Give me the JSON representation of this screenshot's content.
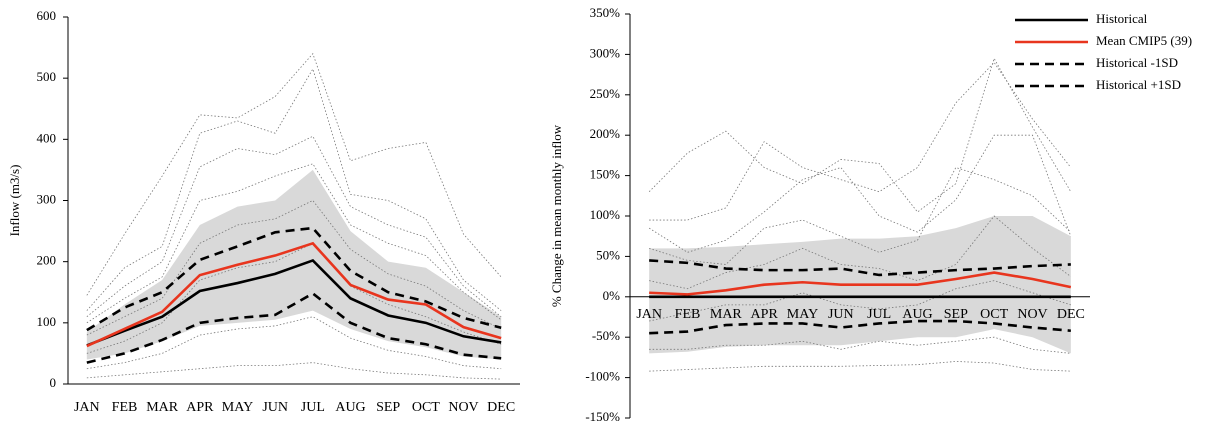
{
  "chart_data": [
    {
      "type": "line",
      "y_label": "Inflow (m3/s)",
      "categories": [
        "JAN",
        "FEB",
        "MAR",
        "APR",
        "MAY",
        "JUN",
        "JUL",
        "AUG",
        "SEP",
        "OCT",
        "NOV",
        "DEC"
      ],
      "ylim": [
        0,
        600
      ],
      "yticks": [
        0,
        100,
        200,
        300,
        400,
        500,
        600
      ],
      "x_axis_position": "bottom",
      "band": {
        "color": "#d9d9d9",
        "lower": [
          40,
          50,
          70,
          95,
          100,
          105,
          120,
          90,
          70,
          60,
          45,
          40
        ],
        "upper": [
          85,
          130,
          170,
          260,
          290,
          300,
          350,
          250,
          200,
          190,
          150,
          110
        ]
      },
      "series": [
        {
          "color": "#777777",
          "style": "dotted",
          "values": [
            145,
            245,
            340,
            440,
            435,
            470,
            540,
            365,
            385,
            395,
            245,
            175
          ]
        },
        {
          "color": "#777777",
          "style": "dotted",
          "values": [
            120,
            190,
            225,
            410,
            430,
            410,
            515,
            310,
            300,
            270,
            170,
            120
          ]
        },
        {
          "color": "#777777",
          "style": "dotted",
          "values": [
            110,
            160,
            200,
            355,
            385,
            375,
            405,
            290,
            260,
            240,
            160,
            110
          ]
        },
        {
          "color": "#777777",
          "style": "dotted",
          "values": [
            100,
            140,
            175,
            300,
            315,
            340,
            360,
            260,
            230,
            210,
            150,
            105
          ]
        },
        {
          "color": "#777777",
          "style": "dotted",
          "values": [
            80,
            110,
            140,
            230,
            260,
            270,
            300,
            220,
            180,
            160,
            120,
            90
          ]
        },
        {
          "color": "#777777",
          "style": "dotted",
          "values": [
            50,
            70,
            100,
            170,
            190,
            200,
            230,
            160,
            130,
            110,
            85,
            65
          ]
        },
        {
          "color": "#777777",
          "style": "dotted",
          "values": [
            25,
            35,
            50,
            80,
            90,
            95,
            110,
            75,
            55,
            45,
            30,
            25
          ]
        },
        {
          "color": "#777777",
          "style": "dotted",
          "values": [
            10,
            15,
            20,
            25,
            30,
            30,
            35,
            25,
            18,
            15,
            10,
            8
          ]
        },
        {
          "color": "#000000",
          "style": "solid",
          "values": [
            63,
            87,
            110,
            152,
            165,
            180,
            202,
            140,
            112,
            100,
            78,
            68
          ]
        },
        {
          "color": "#e8351e",
          "style": "solid",
          "values": [
            62,
            90,
            118,
            178,
            195,
            210,
            230,
            162,
            138,
            130,
            93,
            75
          ]
        },
        {
          "color": "#000000",
          "style": "dashed",
          "values": [
            35,
            50,
            72,
            100,
            108,
            113,
            148,
            100,
            75,
            65,
            48,
            42
          ]
        },
        {
          "color": "#000000",
          "style": "dashed",
          "values": [
            88,
            125,
            150,
            203,
            225,
            248,
            255,
            185,
            150,
            135,
            108,
            92
          ]
        }
      ]
    },
    {
      "type": "line",
      "y_label": "% Change in mean monthly inflow",
      "categories": [
        "JAN",
        "FEB",
        "MAR",
        "APR",
        "MAY",
        "JUN",
        "JUL",
        "AUG",
        "SEP",
        "OCT",
        "NOV",
        "DEC"
      ],
      "ylim": [
        -150,
        350
      ],
      "yticks": [
        {
          "value": -150,
          "label": "-150%"
        },
        {
          "value": -100,
          "label": "-100%"
        },
        {
          "value": -50,
          "label": "-50%"
        },
        {
          "value": 0,
          "label": "0%"
        },
        {
          "value": 50,
          "label": "50%"
        },
        {
          "value": 100,
          "label": "100%"
        },
        {
          "value": 150,
          "label": "150%"
        },
        {
          "value": 200,
          "label": "200%"
        },
        {
          "value": 250,
          "label": "250%"
        },
        {
          "value": 300,
          "label": "300%"
        },
        {
          "value": 350,
          "label": "350%"
        }
      ],
      "x_axis_position": "zero",
      "legend": "top-right",
      "band": {
        "color": "#d9d9d9",
        "lower": [
          -70,
          -68,
          -62,
          -60,
          -60,
          -60,
          -55,
          -50,
          -50,
          -40,
          -50,
          -70
        ],
        "upper": [
          60,
          60,
          62,
          65,
          68,
          72,
          72,
          75,
          85,
          100,
          100,
          75
        ]
      },
      "series": [
        {
          "color": "#777777",
          "style": "dotted",
          "values": [
            130,
            178,
            205,
            160,
            140,
            170,
            165,
            105,
            140,
            295,
            210,
            130
          ]
        },
        {
          "color": "#777777",
          "style": "dotted",
          "values": [
            95,
            95,
            110,
            192,
            160,
            145,
            130,
            160,
            240,
            290,
            220,
            160
          ]
        },
        {
          "color": "#777777",
          "style": "dotted",
          "values": [
            85,
            55,
            70,
            105,
            145,
            160,
            100,
            80,
            120,
            200,
            200,
            75
          ]
        },
        {
          "color": "#777777",
          "style": "dotted",
          "values": [
            60,
            45,
            40,
            85,
            95,
            75,
            55,
            70,
            160,
            145,
            125,
            80
          ]
        },
        {
          "color": "#777777",
          "style": "dotted",
          "values": [
            20,
            10,
            30,
            40,
            60,
            40,
            35,
            20,
            40,
            100,
            60,
            25
          ]
        },
        {
          "color": "#777777",
          "style": "dotted",
          "values": [
            -30,
            -20,
            -10,
            -10,
            5,
            -10,
            -15,
            -10,
            10,
            20,
            5,
            -10
          ]
        },
        {
          "color": "#777777",
          "style": "dotted",
          "values": [
            -65,
            -65,
            -60,
            -60,
            -55,
            -65,
            -55,
            -60,
            -55,
            -50,
            -65,
            -70
          ]
        },
        {
          "color": "#777777",
          "style": "dotted",
          "values": [
            -92,
            -90,
            -88,
            -86,
            -86,
            -86,
            -85,
            -84,
            -80,
            -82,
            -90,
            -92
          ]
        },
        {
          "name": "Historical",
          "color": "#000000",
          "style": "solid",
          "values": [
            0,
            0,
            0,
            0,
            0,
            0,
            0,
            0,
            0,
            0,
            0,
            0
          ]
        },
        {
          "name": "Mean CMIP5 (39)",
          "color": "#e8351e",
          "style": "solid",
          "values": [
            5,
            3,
            8,
            15,
            18,
            15,
            15,
            15,
            22,
            30,
            22,
            12
          ]
        },
        {
          "name": "Historical -1SD",
          "color": "#000000",
          "style": "dashed",
          "values": [
            -45,
            -43,
            -35,
            -33,
            -33,
            -38,
            -33,
            -30,
            -30,
            -33,
            -38,
            -42
          ]
        },
        {
          "name": "Historical +1SD",
          "color": "#000000",
          "style": "dashed",
          "values": [
            45,
            42,
            35,
            33,
            33,
            35,
            27,
            30,
            33,
            35,
            38,
            40
          ]
        }
      ]
    }
  ]
}
